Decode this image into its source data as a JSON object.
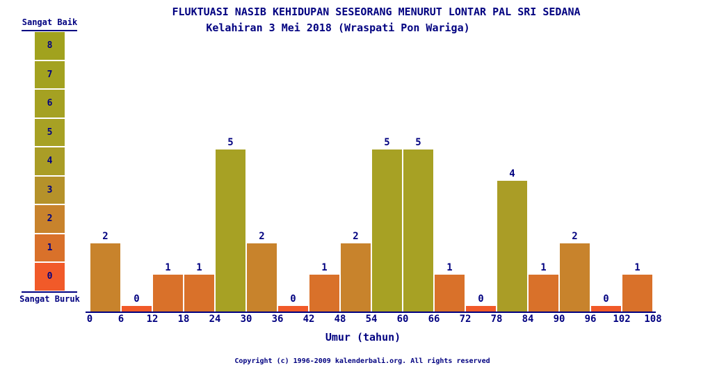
{
  "page": {
    "title": "FLUKTUASI NASIB KEHIDUPAN SESEORANG MENURUT LONTAR PAL SRI SEDANA",
    "subtitle": "Kelahiran 3 Mei 2018 (Wraspati Pon Wariga)",
    "footer": "Copyright (c) 1996-2009 kalenderbali.org. All rights reserved"
  },
  "legend": {
    "top_label": "Sangat Baik",
    "bottom_label": "Sangat Buruk",
    "scale_values": [
      8,
      7,
      6,
      5,
      4,
      3,
      2,
      1,
      0
    ]
  },
  "colors": {
    "text": "#000080",
    "axis": "#000080",
    "background": "#ffffff",
    "value_palette": [
      "#f15a29",
      "#d9712a",
      "#c8832c",
      "#b5922a",
      "#aa9d26",
      "#a7a124",
      "#a5a122",
      "#a3a220",
      "#a1a21e"
    ]
  },
  "chart_data": {
    "type": "bar",
    "title": "FLUKTUASI NASIB KEHIDUPAN SESEORANG MENURUT LONTAR PAL SRI SEDANA",
    "subtitle": "Kelahiran 3 Mei 2018 (Wraspati Pon Wariga)",
    "xlabel": "Umur (tahun)",
    "ylabel": "",
    "categories": [
      "0-6",
      "6-12",
      "12-18",
      "18-24",
      "24-30",
      "30-36",
      "36-42",
      "42-48",
      "48-54",
      "54-60",
      "60-66",
      "66-72",
      "72-78",
      "78-84",
      "84-90",
      "90-96",
      "96-102",
      "102-108"
    ],
    "values": [
      2,
      0,
      1,
      1,
      5,
      2,
      0,
      1,
      2,
      5,
      5,
      1,
      0,
      4,
      1,
      2,
      0,
      1
    ],
    "x_ticks": [
      0,
      6,
      12,
      18,
      24,
      30,
      36,
      42,
      48,
      54,
      60,
      66,
      72,
      78,
      84,
      90,
      96,
      102,
      108
    ],
    "ylim": [
      0,
      8
    ],
    "bar_value_labels": true,
    "legend_position": "left",
    "grid": false
  }
}
